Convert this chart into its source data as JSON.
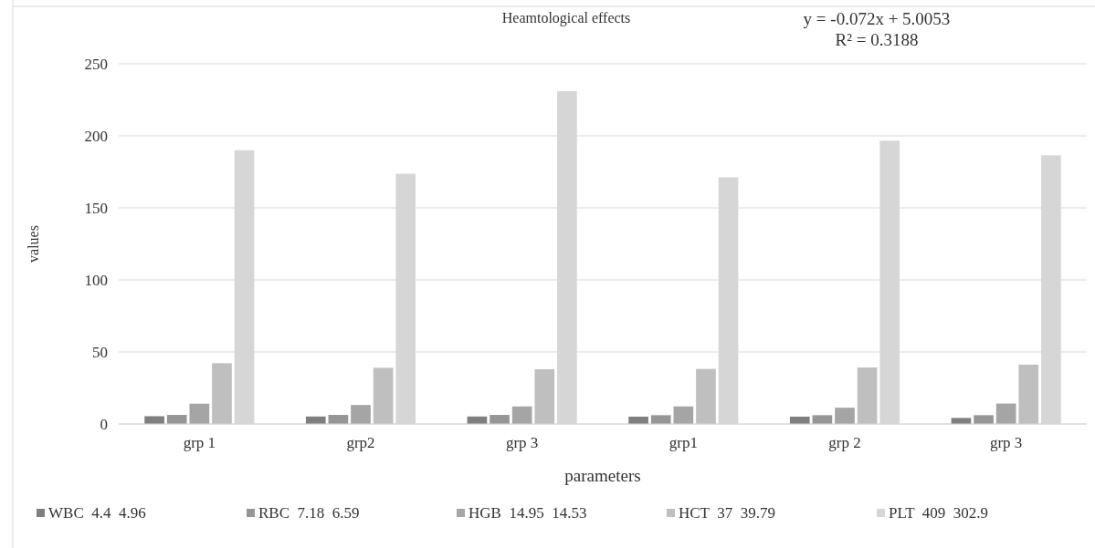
{
  "chart_data": {
    "type": "bar",
    "title": "Heamtological effects",
    "xlabel": "parameters",
    "ylabel": "values",
    "categories": [
      "grp 1",
      "grp2",
      "grp 3",
      "grp1",
      "grp 2",
      "grp 3"
    ],
    "series": [
      {
        "name": "WBC  4.4  4.96",
        "color": "#7f7f7f",
        "values": [
          5.4,
          5.2,
          5.2,
          5.1,
          5.1,
          4.2
        ]
      },
      {
        "name": "RBC  7.18  6.59",
        "color": "#969696",
        "values": [
          6.3,
          6.3,
          6.3,
          6.1,
          6.1,
          6.1
        ]
      },
      {
        "name": "HGB  14.95  14.53",
        "color": "#a5a5a5",
        "values": [
          14.1,
          13.2,
          12.2,
          12.2,
          11.3,
          14.2
        ]
      },
      {
        "name": "HCT  37  39.79",
        "color": "#bfbfbf",
        "values": [
          42.2,
          39,
          38,
          38.2,
          39.2,
          41.2
        ]
      },
      {
        "name": "PLT  409  302.9",
        "color": "#d6d6d6",
        "values": [
          190,
          173.7,
          231,
          171.3,
          196.6,
          186.5
        ]
      }
    ],
    "ylim": [
      0,
      250
    ],
    "yticks": [
      0,
      50,
      100,
      150,
      200,
      250
    ],
    "grid": "y",
    "legend": "bottom",
    "annotations": [
      "y = -0.072x + 5.0053",
      "R² = 0.3188"
    ]
  }
}
